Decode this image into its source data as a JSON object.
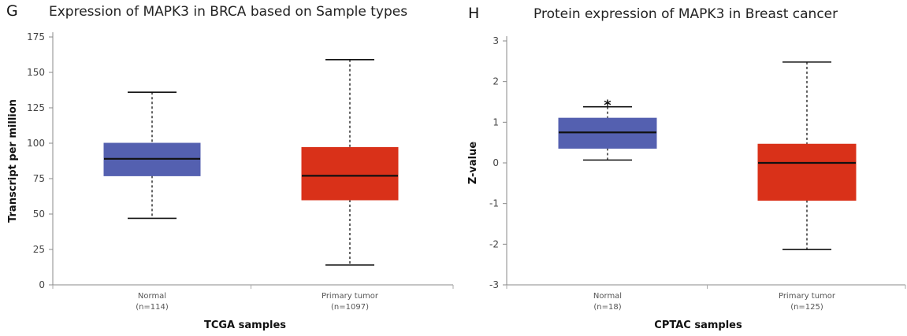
{
  "chart_data": [
    {
      "type": "box",
      "panel_label": "G",
      "title": "Expression of MAPK3 in BRCA based on Sample types",
      "xlabel": "TCGA samples",
      "ylabel": "Transcript per million",
      "ylim": [
        0,
        175
      ],
      "yticks": [
        0,
        25,
        50,
        75,
        100,
        125,
        150,
        175
      ],
      "grid": false,
      "boxes": [
        {
          "name": "Normal",
          "n_label": "(n=114)",
          "color": "#5460b0",
          "whisker_low": 47,
          "q1": 77,
          "median": 89,
          "q3": 100,
          "whisker_high": 136,
          "annotation": ""
        },
        {
          "name": "Primary tumor",
          "n_label": "(n=1097)",
          "color": "#d93119",
          "whisker_low": 14,
          "q1": 60,
          "median": 77,
          "q3": 97,
          "whisker_high": 159,
          "annotation": ""
        }
      ]
    },
    {
      "type": "box",
      "panel_label": "H",
      "title": "Protein expression of MAPK3 in Breast cancer",
      "xlabel": "CPTAC samples",
      "ylabel": "Z-value",
      "ylim": [
        -3,
        3
      ],
      "yticks": [
        -3,
        -2,
        -1,
        0,
        1,
        2,
        3
      ],
      "grid": false,
      "boxes": [
        {
          "name": "Normal",
          "n_label": "(n=18)",
          "color": "#5460b0",
          "whisker_low": 0.07,
          "q1": 0.36,
          "median": 0.75,
          "q3": 1.1,
          "whisker_high": 1.38,
          "annotation": "*"
        },
        {
          "name": "Primary tumor",
          "n_label": "(n=125)",
          "color": "#d93119",
          "whisker_low": -2.13,
          "q1": -0.92,
          "median": 0.0,
          "q3": 0.46,
          "whisker_high": 2.48,
          "annotation": ""
        }
      ]
    }
  ]
}
